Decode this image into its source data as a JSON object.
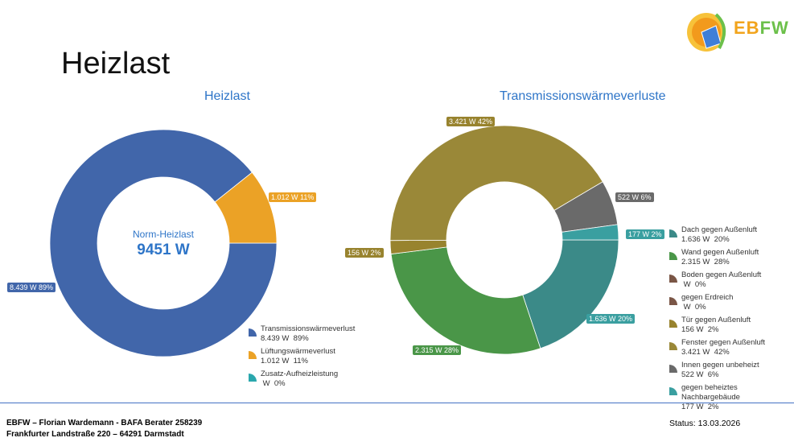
{
  "page": {
    "title": "Heizlast"
  },
  "logo": {
    "text_part1": "EB",
    "text_part2": "FW"
  },
  "footer": {
    "line1": "EBFW – Florian Wardemann - BAFA Berater 258239",
    "line2": "Frankfurter Landstraße 220 – 64291 Darmstadt",
    "status": "Status: 13.03.2026"
  },
  "chart_data": [
    {
      "type": "pie",
      "title": "Heizlast",
      "donut": true,
      "center_label": "Norm-Heizlast",
      "center_value": "9451 W",
      "slices": [
        {
          "name": "Transmissionswärmeverlust",
          "value": 8439,
          "display": "8.439 W",
          "percent": 89,
          "label": "8.439 W 89%",
          "legend_value": "8.439 W  89%",
          "color": "#4166aa"
        },
        {
          "name": "Lüftungswärmeverlust",
          "value": 1012,
          "display": "1.012 W",
          "percent": 11,
          "label": "1.012 W 11%",
          "legend_value": "1.012 W  11%",
          "color": "#eba226"
        },
        {
          "name": "Zusatz-Aufheizleistung",
          "value": 0,
          "display": "W",
          "percent": 0,
          "label": "",
          "legend_value": " W  0%",
          "color": "#2aa7ad"
        }
      ]
    },
    {
      "type": "pie",
      "title": "Transmissionswärmeverluste",
      "donut": true,
      "slices": [
        {
          "name": "Dach gegen Außenluft",
          "value": 1636,
          "percent": 20,
          "label": "1.636 W 20%",
          "legend_value": "1.636 W  20%",
          "color": "#3b8a88"
        },
        {
          "name": "Wand gegen Außenluft",
          "value": 2315,
          "percent": 28,
          "label": "2.315 W 28%",
          "legend_value": "2.315 W  28%",
          "color": "#4a9648"
        },
        {
          "name": "Boden gegen Außenluft",
          "value": 0,
          "percent": 0,
          "label": "",
          "legend_value": " W  0%",
          "color": "#7a5646"
        },
        {
          "name": "gegen Erdreich",
          "value": 0,
          "percent": 0,
          "label": "",
          "legend_value": " W  0%",
          "color": "#7a5646"
        },
        {
          "name": "Tür gegen Außenluft",
          "value": 156,
          "percent": 2,
          "label": "156 W 2%",
          "legend_value": "156 W  2%",
          "color": "#98832e"
        },
        {
          "name": "Fenster gegen Außenluft",
          "value": 3421,
          "percent": 42,
          "label": "3.421 W 42%",
          "legend_value": "3.421 W  42%",
          "color": "#9a8838"
        },
        {
          "name": "Innen gegen unbeheizt",
          "value": 522,
          "percent": 6,
          "label": "522 W 6%",
          "legend_value": "522 W  6%",
          "color": "#6a6a6a"
        },
        {
          "name": "gegen beheiztes Nachbargebäude",
          "value": 177,
          "percent": 2,
          "label": "177 W 2%",
          "legend_value": "177 W  2%",
          "color": "#3a9fa0"
        }
      ]
    }
  ]
}
